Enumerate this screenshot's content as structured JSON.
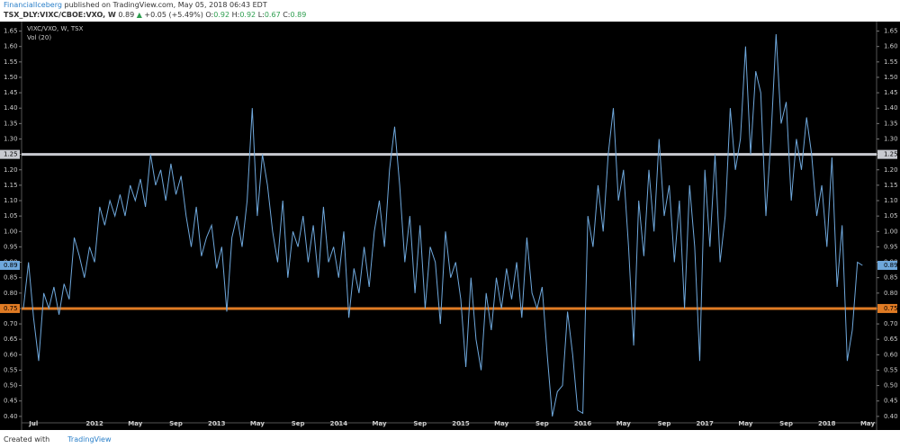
{
  "header": {
    "author": "FinancialIceberg",
    "published": "published on TradingView.com, May 05, 2018 06:43 EDT",
    "symbol": "TSX_DLY:VIXC/CBOE:VXO, W",
    "last": "0.89",
    "change": "+0.05 (+5.49%)",
    "quote": [
      {
        "label": "O:",
        "value": "0.92"
      },
      {
        "label": "H:",
        "value": "0.92"
      },
      {
        "label": "L:",
        "value": "0.67"
      },
      {
        "label": "C:",
        "value": "0.89"
      }
    ]
  },
  "footer": {
    "text": "Created with",
    "brand": "TradingView"
  },
  "chart_data": {
    "type": "line",
    "legend": [
      "VIXC/VXO, W, TSX",
      "Vol (20)"
    ],
    "categories": [
      null,
      null,
      "Jul",
      null,
      null,
      null,
      null,
      null,
      null,
      null,
      null,
      null,
      null,
      null,
      "2012",
      null,
      null,
      null,
      null,
      null,
      null,
      null,
      "May",
      null,
      null,
      null,
      null,
      null,
      null,
      null,
      "Sep",
      null,
      null,
      null,
      null,
      null,
      null,
      null,
      "2013",
      null,
      null,
      null,
      null,
      null,
      null,
      null,
      "May",
      null,
      null,
      null,
      null,
      null,
      null,
      null,
      "Sep",
      null,
      null,
      null,
      null,
      null,
      null,
      null,
      "2014",
      null,
      null,
      null,
      null,
      null,
      null,
      null,
      "May",
      null,
      null,
      null,
      null,
      null,
      null,
      null,
      "Sep",
      null,
      null,
      null,
      null,
      null,
      null,
      null,
      "2015",
      null,
      null,
      null,
      null,
      null,
      null,
      null,
      "May",
      null,
      null,
      null,
      null,
      null,
      null,
      null,
      "Sep",
      null,
      null,
      null,
      null,
      null,
      null,
      null,
      "2016",
      null,
      null,
      null,
      null,
      null,
      null,
      null,
      "May",
      null,
      null,
      null,
      null,
      null,
      null,
      null,
      "Sep",
      null,
      null,
      null,
      null,
      null,
      null,
      null,
      "2017",
      null,
      null,
      null,
      null,
      null,
      null,
      null,
      "May",
      null,
      null,
      null,
      null,
      null,
      null,
      null,
      "Sep",
      null,
      null,
      null,
      null,
      null,
      null,
      null,
      "2018",
      null,
      null,
      null,
      null,
      null,
      null,
      null,
      "May"
    ],
    "series": [
      {
        "name": "VIXC/VXO, W, TSX",
        "color": "#6fa8dc",
        "values": [
          0.75,
          0.9,
          0.72,
          0.58,
          0.8,
          0.75,
          0.82,
          0.73,
          0.83,
          0.78,
          0.98,
          0.92,
          0.85,
          0.95,
          0.9,
          1.08,
          1.02,
          1.1,
          1.05,
          1.12,
          1.05,
          1.15,
          1.1,
          1.17,
          1.08,
          1.25,
          1.15,
          1.2,
          1.1,
          1.22,
          1.12,
          1.18,
          1.05,
          0.95,
          1.08,
          0.92,
          0.98,
          1.02,
          0.88,
          0.95,
          0.74,
          0.98,
          1.05,
          0.95,
          1.1,
          1.4,
          1.05,
          1.25,
          1.15,
          1.0,
          0.9,
          1.1,
          0.85,
          1.0,
          0.95,
          1.05,
          0.9,
          1.02,
          0.85,
          1.08,
          0.9,
          0.95,
          0.85,
          1.0,
          0.72,
          0.88,
          0.8,
          0.95,
          0.82,
          1.0,
          1.1,
          0.95,
          1.2,
          1.34,
          1.15,
          0.9,
          1.05,
          0.8,
          1.02,
          0.75,
          0.95,
          0.9,
          0.7,
          1.0,
          0.85,
          0.9,
          0.78,
          0.56,
          0.85,
          0.65,
          0.55,
          0.8,
          0.68,
          0.85,
          0.75,
          0.88,
          0.78,
          0.9,
          0.72,
          0.98,
          0.8,
          0.75,
          0.82,
          0.6,
          0.4,
          0.48,
          0.5,
          0.74,
          0.6,
          0.42,
          0.41,
          1.05,
          0.95,
          1.15,
          1.0,
          1.25,
          1.4,
          1.1,
          1.2,
          0.95,
          0.63,
          1.1,
          0.92,
          1.2,
          1.0,
          1.3,
          1.05,
          1.15,
          0.9,
          1.1,
          0.75,
          1.15,
          0.95,
          0.58,
          1.2,
          0.95,
          1.25,
          0.9,
          1.05,
          1.4,
          1.2,
          1.3,
          1.6,
          1.25,
          1.52,
          1.45,
          1.05,
          1.3,
          1.64,
          1.35,
          1.42,
          1.1,
          1.3,
          1.2,
          1.37,
          1.25,
          1.05,
          1.15,
          0.95,
          1.24,
          0.82,
          1.02,
          0.58,
          0.68,
          0.9,
          0.89,
          null
        ]
      }
    ],
    "hlines": [
      {
        "value": 1.25,
        "color": "#c8cad0"
      },
      {
        "value": 0.75,
        "color": "#e07b24"
      }
    ],
    "last_color": "#6fa8dc",
    "ylim": [
      0.385,
      1.675
    ],
    "yticks": [
      {
        "value": 0.4,
        "label": "0.40"
      },
      {
        "value": 0.45,
        "label": "0.45"
      },
      {
        "value": 0.5,
        "label": "0.50"
      },
      {
        "value": 0.55,
        "label": "0.55"
      },
      {
        "value": 0.6,
        "label": "0.60"
      },
      {
        "value": 0.65,
        "label": "0.65"
      },
      {
        "value": 0.7,
        "label": "0.70"
      },
      {
        "value": 0.75,
        "label": "0.75"
      },
      {
        "value": 0.8,
        "label": "0.80"
      },
      {
        "value": 0.85,
        "label": "0.85"
      },
      {
        "value": 0.9,
        "label": "0.90"
      },
      {
        "value": 0.95,
        "label": "0.95"
      },
      {
        "value": 1.0,
        "label": "1.00"
      },
      {
        "value": 1.05,
        "label": "1.05"
      },
      {
        "value": 1.1,
        "label": "1.10"
      },
      {
        "value": 1.15,
        "label": "1.15"
      },
      {
        "value": 1.2,
        "label": "1.20"
      },
      {
        "value": 1.25,
        "label": "1.25"
      },
      {
        "value": 1.3,
        "label": "1.30"
      },
      {
        "value": 1.35,
        "label": "1.35"
      },
      {
        "value": 1.4,
        "label": "1.40"
      },
      {
        "value": 1.45,
        "label": "1.45"
      },
      {
        "value": 1.5,
        "label": "1.50"
      },
      {
        "value": 1.55,
        "label": "1.55"
      },
      {
        "value": 1.6,
        "label": "1.60"
      },
      {
        "value": 1.65,
        "label": "1.65"
      }
    ],
    "grid": false
  }
}
